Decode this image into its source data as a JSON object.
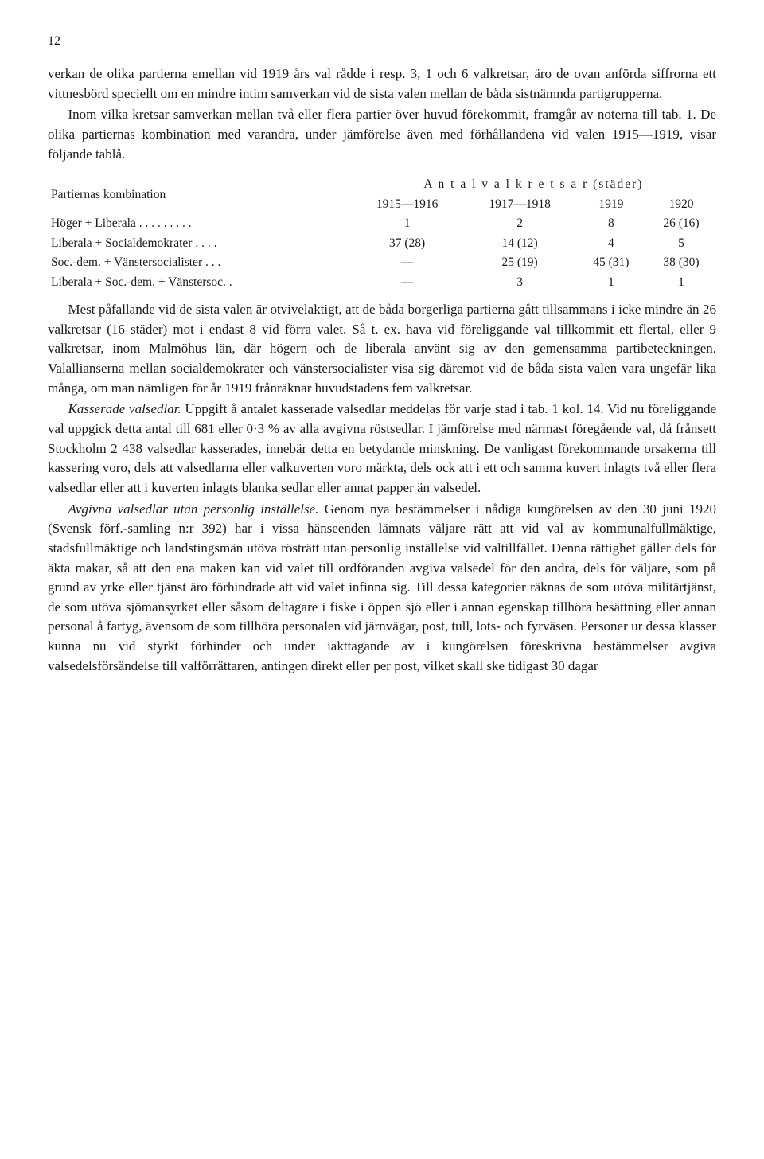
{
  "page_number": "12",
  "para1": "verkan de olika partierna emellan vid 1919 års val rådde i resp. 3, 1 och 6 valkretsar, äro de ovan anförda siffrorna ett vittnesbörd speciellt om en mindre intim samverkan vid de sista valen mellan de båda sistnämnda partigrupperna.",
  "para2": "Inom vilka kretsar samverkan mellan två eller flera partier över huvud förekommit, framgår av noterna till tab. 1. De olika partiernas kombination med varandra, under jämförelse även med förhållandena vid valen 1915—1919, visar följande tablå.",
  "table": {
    "header_top": "A n t a l   v a l k r e t s a r  (städer)",
    "left_heading": "Partiernas kombination",
    "cols": [
      "1915—1916",
      "1917—1918",
      "1919",
      "1920"
    ],
    "rows": [
      {
        "label": "Höger + Liberala . . . . . . . . .",
        "cells": [
          "1",
          "2",
          "8",
          "26 (16)"
        ]
      },
      {
        "label": "Liberala + Socialdemokrater . . . .",
        "cells": [
          "37 (28)",
          "14 (12)",
          "4",
          "5"
        ]
      },
      {
        "label": "Soc.-dem. + Vänstersocialister . . .",
        "cells": [
          "—",
          "25 (19)",
          "45 (31)",
          "38 (30)"
        ]
      },
      {
        "label": "Liberala + Soc.-dem. + Vänstersoc. .",
        "cells": [
          "—",
          "3",
          "1",
          "1"
        ]
      }
    ]
  },
  "para3": "Mest påfallande vid de sista valen är otvivelaktigt, att de båda borgerliga partierna gått tillsammans i icke mindre än 26 valkretsar (16 städer) mot i endast 8 vid förra valet. Så t. ex. hava vid föreliggande val tillkommit ett flertal, eller 9 valkretsar, inom Malmöhus län, där högern och de liberala använt sig av den gemensamma partibeteckningen. Valallianserna mellan socialdemokrater och vänstersocialister visa sig däremot vid de båda sista valen vara ungefär lika många, om man nämligen för år 1919 frånräknar huvudstadens fem valkretsar.",
  "para4_title": "Kasserade valsedlar.",
  "para4": " Uppgift å antalet kasserade valsedlar meddelas för varje stad i tab. 1 kol. 14. Vid nu föreliggande val uppgick detta antal till 681 eller 0·3 % av alla avgivna röstsedlar. I jämförelse med närmast föregående val, då frånsett Stockholm 2 438 valsedlar kasserades, innebär detta en betydande minskning. De vanligast förekommande orsakerna till kassering voro, dels att valsedlarna eller valkuverten voro märkta, dels ock att i ett och samma kuvert inlagts två eller flera valsedlar eller att i kuverten inlagts blanka sedlar eller annat papper än valsedel.",
  "para5_title": "Avgivna valsedlar utan personlig inställelse.",
  "para5": " Genom nya bestämmelser i nådiga kungörelsen av den 30 juni 1920 (Svensk förf.-samling n:r 392) har i vissa hänseenden lämnats väljare rätt att vid val av kommunalfullmäktige, stadsfullmäktige och landstingsmän utöva rösträtt utan personlig inställelse vid valtillfället. Denna rättighet gäller dels för äkta makar, så att den ena maken kan vid valet till ordföranden avgiva valsedel för den andra, dels för väljare, som på grund av yrke eller tjänst äro förhindrade att vid valet infinna sig. Till dessa kategorier räknas de som utöva militärtjänst, de som utöva sjömansyrket eller såsom deltagare i fiske i öppen sjö eller i annan egenskap tillhöra besättning eller annan personal å fartyg, ävensom de som tillhöra personalen vid järnvägar, post, tull, lots- och fyrväsen. Personer ur dessa klasser kunna nu vid styrkt förhinder och under iakttagande av i kungörelsen föreskrivna bestämmelser avgiva valsedelsförsändelse till valförrättaren, antingen direkt eller per post, vilket skall ske tidigast 30 dagar"
}
